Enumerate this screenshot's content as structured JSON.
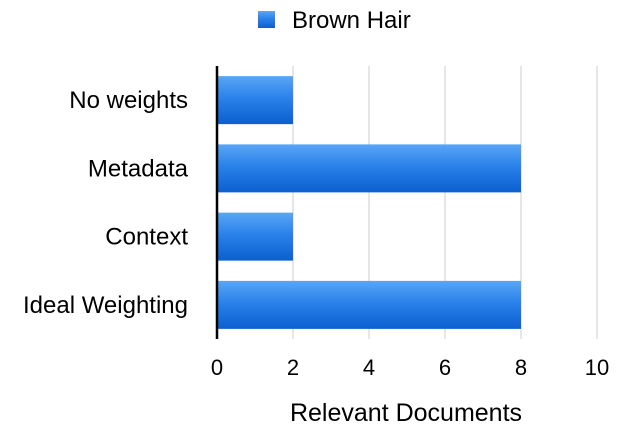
{
  "chart_data": {
    "type": "bar",
    "orientation": "horizontal",
    "categories": [
      "No weights",
      "Metadata",
      "Context",
      "Ideal Weighting"
    ],
    "series": [
      {
        "name": "Brown Hair",
        "values": [
          2,
          8,
          2,
          8
        ],
        "color": "#1a6fdf"
      }
    ],
    "xlabel": "Relevant Documents",
    "ylabel": "",
    "title": "",
    "xlim": [
      0,
      10
    ],
    "xticks": [
      "0",
      "2",
      "4",
      "6",
      "8",
      "10"
    ],
    "grid": true,
    "legend_position": "top-center"
  }
}
